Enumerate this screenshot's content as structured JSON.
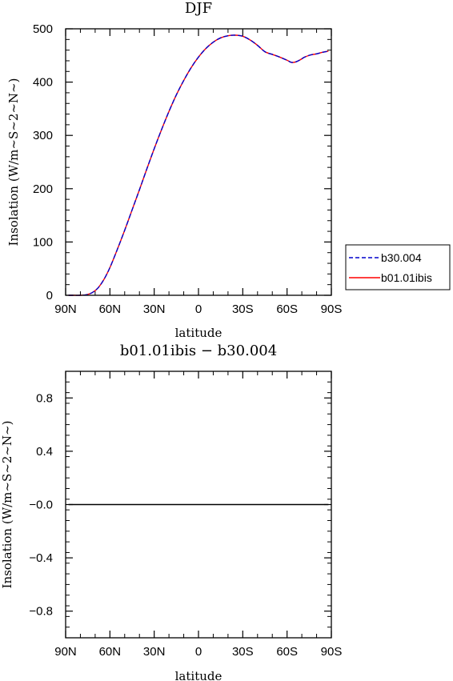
{
  "chart_data": [
    {
      "type": "line",
      "title": "DJF",
      "xlabel": "latitude",
      "ylabel": "Insolation (W/m~S~2~N~)",
      "xlim": [
        -90,
        90
      ],
      "ylim": [
        0,
        500
      ],
      "x_ticks": [
        {
          "value": -90,
          "label": "90N"
        },
        {
          "value": -60,
          "label": "60N"
        },
        {
          "value": -30,
          "label": "30N"
        },
        {
          "value": 0,
          "label": "0"
        },
        {
          "value": 30,
          "label": "30S"
        },
        {
          "value": 60,
          "label": "60S"
        },
        {
          "value": 90,
          "label": "90S"
        }
      ],
      "y_ticks": [
        {
          "value": 0,
          "label": "0"
        },
        {
          "value": 100,
          "label": "100"
        },
        {
          "value": 200,
          "label": "200"
        },
        {
          "value": 300,
          "label": "300"
        },
        {
          "value": 400,
          "label": "400"
        },
        {
          "value": 500,
          "label": "500"
        }
      ],
      "x": [
        -88,
        -84,
        -80,
        -76,
        -72,
        -68,
        -64,
        -60,
        -55,
        -50,
        -45,
        -40,
        -35,
        -30,
        -25,
        -20,
        -15,
        -10,
        -5,
        0,
        5,
        10,
        15,
        20,
        25,
        30,
        35,
        40,
        45,
        50,
        55,
        60,
        63,
        66,
        69,
        72,
        76,
        80,
        84,
        88
      ],
      "series": [
        {
          "name": "b30.004",
          "color": "#0000cc",
          "dash": "dashed",
          "values": [
            0,
            0,
            0,
            1,
            5,
            14,
            30,
            52,
            86,
            122,
            160,
            198,
            237,
            275,
            311,
            345,
            376,
            403,
            427,
            447,
            463,
            475,
            483,
            487,
            488,
            486,
            479,
            469,
            457,
            452,
            447,
            441,
            437,
            438,
            442,
            447,
            451,
            453,
            456,
            458
          ]
        },
        {
          "name": "b01.01ibis",
          "color": "#ff0000",
          "dash": "solid",
          "values": [
            0,
            0,
            0,
            1,
            5,
            14,
            30,
            52,
            86,
            122,
            160,
            198,
            237,
            275,
            311,
            345,
            376,
            403,
            427,
            447,
            463,
            475,
            483,
            487,
            488,
            486,
            479,
            469,
            457,
            452,
            447,
            441,
            437,
            438,
            442,
            447,
            451,
            453,
            456,
            458
          ]
        }
      ],
      "legend": "right"
    },
    {
      "type": "line",
      "title": "b01.01ibis − b30.004",
      "xlabel": "latitude",
      "ylabel": "Insolation (W/m~S~2~N~)",
      "xlim": [
        -90,
        90
      ],
      "ylim": [
        -1,
        1
      ],
      "x_ticks": [
        {
          "value": -90,
          "label": "90N"
        },
        {
          "value": -60,
          "label": "60N"
        },
        {
          "value": -30,
          "label": "30N"
        },
        {
          "value": 0,
          "label": "0"
        },
        {
          "value": 30,
          "label": "30S"
        },
        {
          "value": 60,
          "label": "60S"
        },
        {
          "value": 90,
          "label": "90S"
        }
      ],
      "y_ticks": [
        {
          "value": 0.8,
          "label": "0.8"
        },
        {
          "value": 0.4,
          "label": "0.4"
        },
        {
          "value": 0,
          "label": "−0.0"
        },
        {
          "value": -0.4,
          "label": "−0.4"
        },
        {
          "value": -0.8,
          "label": "−0.8"
        }
      ],
      "x": [
        -88,
        88
      ],
      "series": [
        {
          "color": "#000000",
          "dash": "solid",
          "values": [
            0,
            0
          ]
        }
      ]
    }
  ]
}
